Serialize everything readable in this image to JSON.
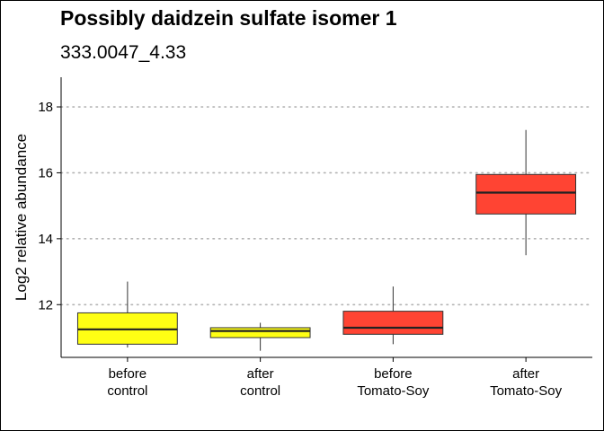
{
  "chart_data": {
    "type": "box",
    "title": "Possibly daidzein sulfate isomer 1",
    "subtitle": "333.0047_4.33",
    "xlabel": "",
    "ylabel": "Log2 relative abundance",
    "ylim": [
      10.4,
      18.9
    ],
    "yticks": [
      12,
      14,
      16,
      18
    ],
    "grid": "horizontal-dotted",
    "categories": [
      [
        "before",
        "control"
      ],
      [
        "after",
        "control"
      ],
      [
        "before",
        "Tomato-Soy"
      ],
      [
        "after",
        "Tomato-Soy"
      ]
    ],
    "boxes": [
      {
        "min": 10.7,
        "q1": 10.8,
        "median": 11.25,
        "q3": 11.75,
        "max": 12.7,
        "color": "#FFFF14"
      },
      {
        "min": 10.6,
        "q1": 11.0,
        "median": 11.2,
        "q3": 11.3,
        "max": 11.45,
        "color": "#FFFF14"
      },
      {
        "min": 10.8,
        "q1": 11.1,
        "median": 11.3,
        "q3": 11.8,
        "max": 12.55,
        "color": "#FF4433"
      },
      {
        "min": 13.5,
        "q1": 14.75,
        "median": 15.4,
        "q3": 15.95,
        "max": 17.3,
        "color": "#FF4433"
      }
    ]
  }
}
